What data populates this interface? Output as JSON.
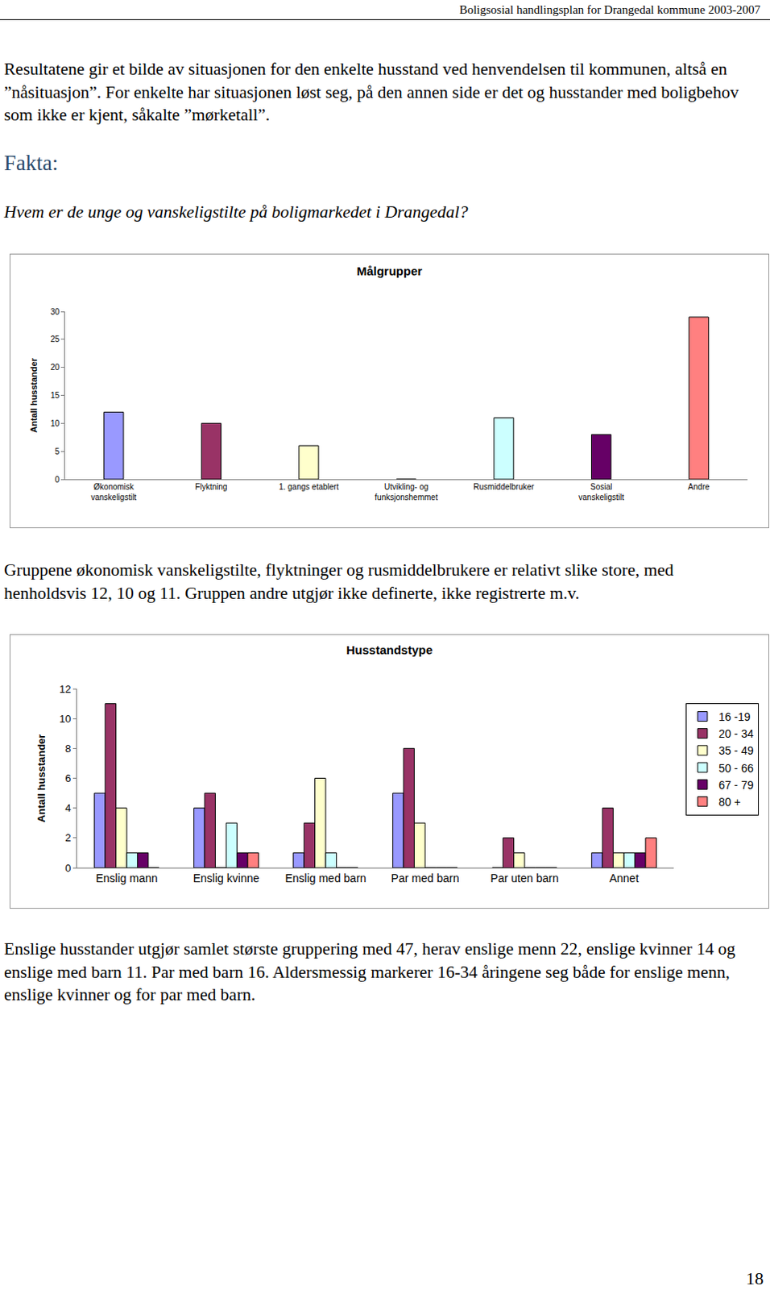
{
  "header": "Boligsosial handlingsplan for Drangedal kommune 2003-2007",
  "intro": "Resultatene gir et bilde av situasjonen for den enkelte husstand ved henvendelsen til kommunen, altså en ”nåsituasjon”. For enkelte har situasjonen løst seg, på den annen side er det og husstander med boligbehov som ikke er kjent, såkalte ”mørketall”.",
  "fakta": "Fakta:",
  "question": "Hvem er de unge og vanskeligstilte på boligmarkedet i Drangedal?",
  "chart_data": [
    {
      "type": "bar",
      "title": "Målgrupper",
      "y_label": "Antall husstander",
      "categories": [
        "Økonomisk vanskeligstilt",
        "Flyktning",
        "1. gangs etablert",
        "Utvikling- og funksjonshemmet",
        "Rusmiddelbruker",
        "Sosial vanskeligstilt",
        "Andre"
      ],
      "values": [
        12,
        10,
        6,
        0,
        11,
        8,
        29
      ],
      "colors": [
        "#9999ff",
        "#993366",
        "#ffffcc",
        "#660066",
        "#ccffff",
        "#660066",
        "#ff8080"
      ],
      "ylim": [
        0,
        30
      ],
      "yticks": [
        0,
        5,
        10,
        15,
        20,
        25,
        30
      ],
      "grid": false
    },
    {
      "type": "bar",
      "title": "Husstandstype",
      "y_label": "Antall husstander",
      "categories": [
        "Enslig mann",
        "Enslig kvinne",
        "Enslig med barn",
        "Par med barn",
        "Par uten barn",
        "Annet"
      ],
      "series": [
        {
          "name": "16 -19",
          "color": "#9999ff",
          "values": [
            5,
            4,
            1,
            5,
            0,
            1
          ]
        },
        {
          "name": "20 - 34",
          "color": "#993366",
          "values": [
            11,
            5,
            3,
            8,
            2,
            4
          ]
        },
        {
          "name": "35 - 49",
          "color": "#ffffcc",
          "values": [
            4,
            0,
            6,
            3,
            1,
            1
          ]
        },
        {
          "name": "50 - 66",
          "color": "#ccffff",
          "values": [
            1,
            3,
            1,
            0,
            0,
            1
          ]
        },
        {
          "name": "67 - 79",
          "color": "#660066",
          "values": [
            1,
            1,
            0,
            0,
            0,
            1
          ]
        },
        {
          "name": "80 +",
          "color": "#ff8080",
          "values": [
            0,
            1,
            0,
            0,
            0,
            2
          ]
        }
      ],
      "ylim": [
        0,
        12
      ],
      "yticks": [
        0,
        2,
        4,
        6,
        8,
        10,
        12
      ],
      "grid": false,
      "legend": "right"
    }
  ],
  "paragraphs_after": [
    "Gruppene økonomisk vanskeligstilte, flyktninger og rusmiddelbrukere er relativt slike store, med henholdsvis 12, 10 og 11. Gruppen andre utgjør ikke definerte, ikke registrerte m.v.",
    "Enslige husstander utgjør samlet største gruppering med 47, herav enslige menn 22, enslige kvinner 14 og enslige med barn 11. Par med barn 16. Aldersmessig markerer 16-34 åringene seg både for enslige menn, enslige kvinner og for par med barn."
  ],
  "page_number": "18"
}
